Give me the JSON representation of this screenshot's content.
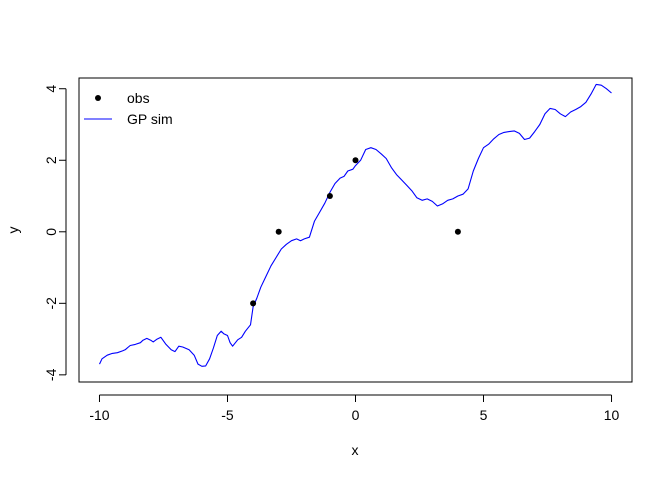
{
  "chart_data": {
    "type": "line",
    "title": "",
    "xlabel": "x",
    "ylabel": "y",
    "xlim": [
      -10.8,
      10.8
    ],
    "ylim": [
      -4.2,
      4.3
    ],
    "xticks": [
      -10,
      -5,
      0,
      5,
      10
    ],
    "xtick_labels": [
      "-10",
      "-5",
      "0",
      "5",
      "10"
    ],
    "yticks": [
      -4,
      -2,
      0,
      2,
      4
    ],
    "ytick_labels": [
      "-4",
      "-2",
      "0",
      "2",
      "4"
    ],
    "grid": false,
    "legend": {
      "placement": "top-left",
      "entries": [
        {
          "label": "obs",
          "marker": "point",
          "color": "#000000"
        },
        {
          "label": "GP sim",
          "marker": "line",
          "color": "#0000ff"
        }
      ]
    },
    "series": [
      {
        "name": "obs",
        "kind": "scatter",
        "color": "#000000",
        "points": [
          [
            -4,
            -2
          ],
          [
            -3,
            0
          ],
          [
            -1,
            1
          ],
          [
            0,
            2
          ],
          [
            4,
            0
          ]
        ]
      },
      {
        "name": "GP sim",
        "kind": "line",
        "color": "#0000ff",
        "points": [
          [
            -10.0,
            -3.7
          ],
          [
            -9.9,
            -3.55
          ],
          [
            -9.7,
            -3.45
          ],
          [
            -9.5,
            -3.4
          ],
          [
            -9.3,
            -3.38
          ],
          [
            -9.1,
            -3.33
          ],
          [
            -9.0,
            -3.3
          ],
          [
            -8.8,
            -3.18
          ],
          [
            -8.6,
            -3.15
          ],
          [
            -8.4,
            -3.1
          ],
          [
            -8.3,
            -3.03
          ],
          [
            -8.15,
            -2.98
          ],
          [
            -8.0,
            -3.03
          ],
          [
            -7.9,
            -3.08
          ],
          [
            -7.75,
            -3.0
          ],
          [
            -7.6,
            -2.95
          ],
          [
            -7.4,
            -3.15
          ],
          [
            -7.2,
            -3.3
          ],
          [
            -7.05,
            -3.35
          ],
          [
            -6.9,
            -3.2
          ],
          [
            -6.75,
            -3.22
          ],
          [
            -6.5,
            -3.3
          ],
          [
            -6.3,
            -3.45
          ],
          [
            -6.15,
            -3.7
          ],
          [
            -6.0,
            -3.76
          ],
          [
            -5.85,
            -3.75
          ],
          [
            -5.7,
            -3.55
          ],
          [
            -5.55,
            -3.25
          ],
          [
            -5.4,
            -2.9
          ],
          [
            -5.25,
            -2.78
          ],
          [
            -5.15,
            -2.85
          ],
          [
            -5.0,
            -2.9
          ],
          [
            -4.9,
            -3.1
          ],
          [
            -4.8,
            -3.2
          ],
          [
            -4.6,
            -3.02
          ],
          [
            -4.45,
            -2.95
          ],
          [
            -4.3,
            -2.78
          ],
          [
            -4.1,
            -2.6
          ],
          [
            -4.0,
            -2.1
          ],
          [
            -3.85,
            -1.85
          ],
          [
            -3.7,
            -1.55
          ],
          [
            -3.5,
            -1.25
          ],
          [
            -3.3,
            -0.95
          ],
          [
            -3.1,
            -0.72
          ],
          [
            -2.9,
            -0.48
          ],
          [
            -2.7,
            -0.35
          ],
          [
            -2.5,
            -0.25
          ],
          [
            -2.3,
            -0.2
          ],
          [
            -2.15,
            -0.25
          ],
          [
            -2.0,
            -0.2
          ],
          [
            -1.8,
            -0.15
          ],
          [
            -1.6,
            0.3
          ],
          [
            -1.4,
            0.55
          ],
          [
            -1.2,
            0.8
          ],
          [
            -1.0,
            1.1
          ],
          [
            -0.8,
            1.35
          ],
          [
            -0.6,
            1.5
          ],
          [
            -0.45,
            1.55
          ],
          [
            -0.3,
            1.7
          ],
          [
            -0.1,
            1.75
          ],
          [
            0.0,
            1.85
          ],
          [
            0.2,
            2.0
          ],
          [
            0.4,
            2.3
          ],
          [
            0.6,
            2.35
          ],
          [
            0.8,
            2.3
          ],
          [
            1.0,
            2.18
          ],
          [
            1.2,
            2.05
          ],
          [
            1.4,
            1.8
          ],
          [
            1.6,
            1.6
          ],
          [
            1.8,
            1.45
          ],
          [
            2.0,
            1.3
          ],
          [
            2.2,
            1.15
          ],
          [
            2.4,
            0.95
          ],
          [
            2.6,
            0.88
          ],
          [
            2.8,
            0.92
          ],
          [
            3.0,
            0.85
          ],
          [
            3.2,
            0.72
          ],
          [
            3.4,
            0.78
          ],
          [
            3.6,
            0.88
          ],
          [
            3.8,
            0.92
          ],
          [
            4.0,
            1.0
          ],
          [
            4.2,
            1.05
          ],
          [
            4.4,
            1.2
          ],
          [
            4.6,
            1.7
          ],
          [
            4.8,
            2.05
          ],
          [
            5.0,
            2.35
          ],
          [
            5.2,
            2.45
          ],
          [
            5.4,
            2.6
          ],
          [
            5.6,
            2.72
          ],
          [
            5.8,
            2.78
          ],
          [
            6.0,
            2.8
          ],
          [
            6.2,
            2.82
          ],
          [
            6.4,
            2.75
          ],
          [
            6.6,
            2.58
          ],
          [
            6.8,
            2.62
          ],
          [
            7.0,
            2.8
          ],
          [
            7.2,
            3.0
          ],
          [
            7.4,
            3.3
          ],
          [
            7.6,
            3.45
          ],
          [
            7.8,
            3.42
          ],
          [
            8.0,
            3.3
          ],
          [
            8.2,
            3.22
          ],
          [
            8.4,
            3.35
          ],
          [
            8.6,
            3.42
          ],
          [
            8.8,
            3.5
          ],
          [
            9.0,
            3.62
          ],
          [
            9.2,
            3.85
          ],
          [
            9.4,
            4.12
          ],
          [
            9.6,
            4.1
          ],
          [
            9.8,
            4.0
          ],
          [
            10.0,
            3.88
          ]
        ]
      }
    ]
  }
}
